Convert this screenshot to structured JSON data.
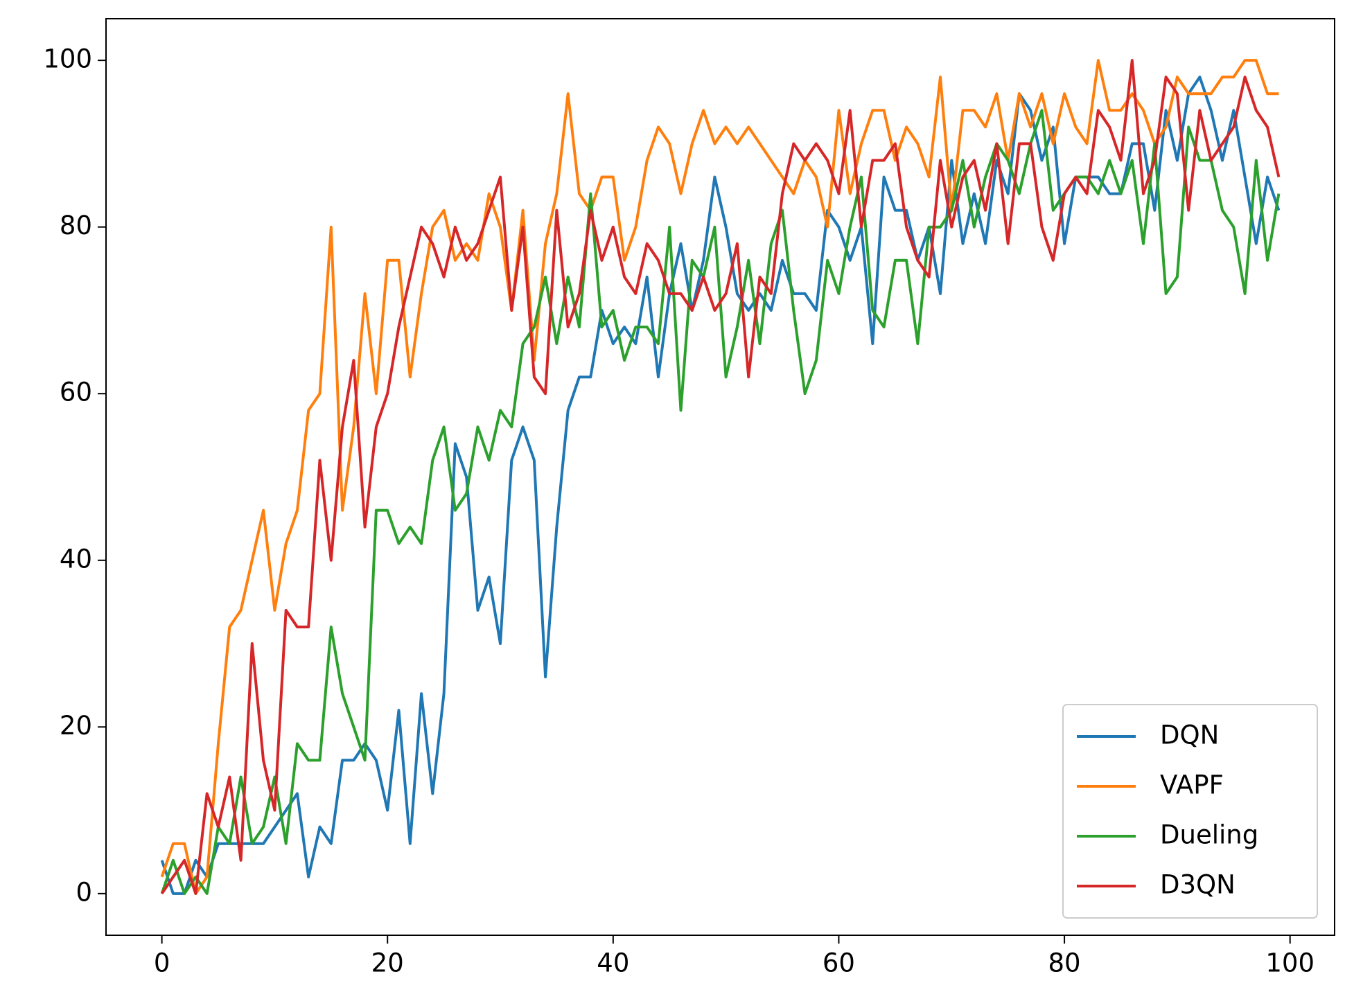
{
  "chart_data": {
    "type": "line",
    "x": [
      0,
      1,
      2,
      3,
      4,
      5,
      6,
      7,
      8,
      9,
      10,
      11,
      12,
      13,
      14,
      15,
      16,
      17,
      18,
      19,
      20,
      21,
      22,
      23,
      24,
      25,
      26,
      27,
      28,
      29,
      30,
      31,
      32,
      33,
      34,
      35,
      36,
      37,
      38,
      39,
      40,
      41,
      42,
      43,
      44,
      45,
      46,
      47,
      48,
      49,
      50,
      51,
      52,
      53,
      54,
      55,
      56,
      57,
      58,
      59,
      60,
      61,
      62,
      63,
      64,
      65,
      66,
      67,
      68,
      69,
      70,
      71,
      72,
      73,
      74,
      75,
      76,
      77,
      78,
      79,
      80,
      81,
      82,
      83,
      84,
      85,
      86,
      87,
      88,
      89,
      90,
      91,
      92,
      93,
      94,
      95,
      96,
      97,
      98,
      99
    ],
    "series": [
      {
        "name": "DQN",
        "color": "#1f77b4",
        "values": [
          4,
          0,
          0,
          4,
          2,
          6,
          6,
          6,
          6,
          6,
          8,
          10,
          12,
          2,
          8,
          6,
          16,
          16,
          18,
          16,
          10,
          22,
          6,
          24,
          12,
          24,
          54,
          50,
          34,
          38,
          30,
          52,
          56,
          52,
          26,
          44,
          58,
          62,
          62,
          70,
          66,
          68,
          66,
          74,
          62,
          72,
          78,
          70,
          76,
          86,
          80,
          72,
          70,
          72,
          70,
          76,
          72,
          72,
          70,
          82,
          80,
          76,
          80,
          66,
          86,
          82,
          82,
          76,
          80,
          72,
          88,
          78,
          84,
          78,
          88,
          84,
          96,
          94,
          88,
          92,
          78,
          86,
          86,
          86,
          84,
          84,
          90,
          90,
          82,
          94,
          88,
          96,
          98,
          94,
          88,
          94,
          86,
          78,
          86,
          82
        ]
      },
      {
        "name": "VAPF",
        "color": "#ff7f0e",
        "values": [
          2,
          6,
          6,
          0,
          2,
          18,
          32,
          34,
          40,
          46,
          34,
          42,
          46,
          58,
          60,
          80,
          46,
          56,
          72,
          60,
          76,
          76,
          62,
          72,
          80,
          82,
          76,
          78,
          76,
          84,
          80,
          70,
          82,
          64,
          78,
          84,
          96,
          84,
          82,
          86,
          86,
          76,
          80,
          88,
          92,
          90,
          84,
          90,
          94,
          90,
          92,
          90,
          92,
          90,
          88,
          86,
          84,
          88,
          86,
          80,
          94,
          84,
          90,
          94,
          94,
          88,
          92,
          90,
          86,
          98,
          82,
          94,
          94,
          92,
          96,
          88,
          96,
          92,
          96,
          90,
          96,
          92,
          90,
          100,
          94,
          94,
          96,
          94,
          90,
          92,
          98,
          96,
          96,
          96,
          98,
          98,
          100,
          100,
          96,
          96
        ]
      },
      {
        "name": "Dueling",
        "color": "#2ca02c",
        "values": [
          0,
          4,
          0,
          2,
          0,
          8,
          6,
          14,
          6,
          8,
          14,
          6,
          18,
          16,
          16,
          32,
          24,
          20,
          16,
          46,
          46,
          42,
          44,
          42,
          52,
          56,
          46,
          48,
          56,
          52,
          58,
          56,
          66,
          68,
          74,
          66,
          74,
          68,
          84,
          68,
          70,
          64,
          68,
          68,
          66,
          80,
          58,
          76,
          74,
          80,
          62,
          68,
          76,
          66,
          78,
          82,
          70,
          60,
          64,
          76,
          72,
          80,
          86,
          70,
          68,
          76,
          76,
          66,
          80,
          80,
          82,
          88,
          80,
          86,
          90,
          88,
          84,
          90,
          94,
          82,
          84,
          86,
          86,
          84,
          88,
          84,
          88,
          78,
          90,
          72,
          74,
          92,
          88,
          88,
          82,
          80,
          72,
          88,
          76,
          84
        ]
      },
      {
        "name": "D3QN",
        "color": "#d62728",
        "values": [
          0,
          2,
          4,
          0,
          12,
          8,
          14,
          4,
          30,
          16,
          10,
          34,
          32,
          32,
          52,
          40,
          56,
          64,
          44,
          56,
          60,
          68,
          74,
          80,
          78,
          74,
          80,
          76,
          78,
          82,
          86,
          70,
          80,
          62,
          60,
          82,
          68,
          72,
          82,
          76,
          80,
          74,
          72,
          78,
          76,
          72,
          72,
          70,
          74,
          70,
          72,
          78,
          62,
          74,
          72,
          84,
          90,
          88,
          90,
          88,
          84,
          94,
          80,
          88,
          88,
          90,
          80,
          76,
          74,
          88,
          80,
          86,
          88,
          82,
          90,
          78,
          90,
          90,
          80,
          76,
          84,
          86,
          84,
          94,
          92,
          88,
          100,
          84,
          88,
          98,
          96,
          82,
          94,
          88,
          90,
          92,
          98,
          94,
          92,
          86
        ]
      }
    ],
    "xlim": [
      -4.95,
      103.95
    ],
    "ylim": [
      -5,
      105
    ],
    "xticks": [
      0,
      20,
      40,
      60,
      80,
      100
    ],
    "yticks": [
      0,
      20,
      40,
      60,
      80,
      100
    ],
    "legend": "lower right"
  }
}
